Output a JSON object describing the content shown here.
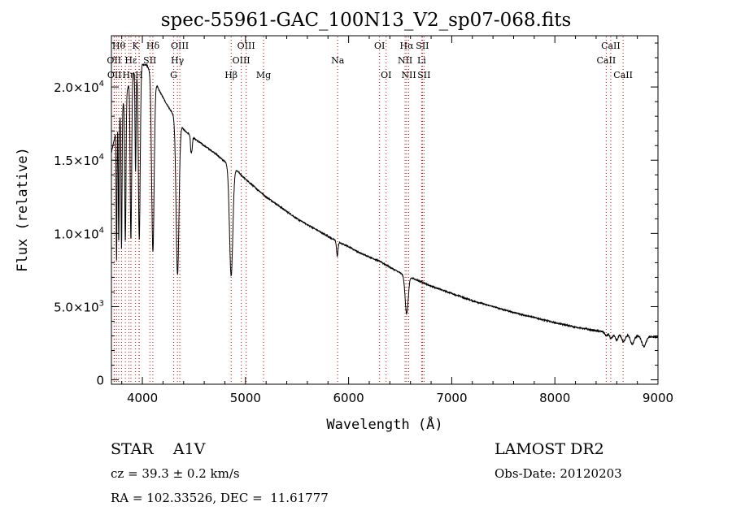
{
  "chart_data": {
    "type": "line",
    "title": "spec-55961-GAC_100N13_V2_sp07-068.fits",
    "xlabel": "Wavelength (Å)",
    "ylabel": "Flux (relative)",
    "xlim": [
      3700,
      9000
    ],
    "ylim": [
      -300,
      23500
    ],
    "grid": false,
    "x_ticks": [
      4000,
      5000,
      6000,
      7000,
      8000,
      9000
    ],
    "x_tick_labels": [
      "4000",
      "5000",
      "6000",
      "7000",
      "8000",
      "9000"
    ],
    "y_ticks": [
      0,
      5000,
      10000,
      15000,
      20000
    ],
    "y_tick_labels": [
      {
        "mant": "0",
        "exp": ""
      },
      {
        "mant": "5.0×10",
        "exp": "3"
      },
      {
        "mant": "1.0×10",
        "exp": "4"
      },
      {
        "mant": "1.5×10",
        "exp": "4"
      },
      {
        "mant": "2.0×10",
        "exp": "4"
      }
    ],
    "series": [
      {
        "continuum": [
          [
            3700,
            15500
          ],
          [
            3760,
            17500
          ],
          [
            3830,
            19300
          ],
          [
            3900,
            20800
          ],
          [
            3970,
            21600
          ],
          [
            4040,
            21500
          ],
          [
            4100,
            20800
          ],
          [
            4160,
            19800
          ],
          [
            4230,
            18900
          ],
          [
            4300,
            18100
          ],
          [
            4400,
            17100
          ],
          [
            4500,
            16500
          ],
          [
            4600,
            16000
          ],
          [
            4700,
            15500
          ],
          [
            4800,
            14900
          ],
          [
            4900,
            14400
          ],
          [
            5000,
            13700
          ],
          [
            5100,
            13100
          ],
          [
            5200,
            12500
          ],
          [
            5300,
            12000
          ],
          [
            5400,
            11500
          ],
          [
            5500,
            11000
          ],
          [
            5600,
            10600
          ],
          [
            5700,
            10200
          ],
          [
            5800,
            9800
          ],
          [
            5900,
            9400
          ],
          [
            6000,
            9100
          ],
          [
            6100,
            8700
          ],
          [
            6200,
            8400
          ],
          [
            6300,
            8100
          ],
          [
            6400,
            7700
          ],
          [
            6500,
            7300
          ],
          [
            6600,
            7000
          ],
          [
            6700,
            6700
          ],
          [
            6800,
            6400
          ],
          [
            7000,
            5900
          ],
          [
            7200,
            5400
          ],
          [
            7400,
            5000
          ],
          [
            7600,
            4600
          ],
          [
            7800,
            4250
          ],
          [
            8000,
            3900
          ],
          [
            8200,
            3600
          ],
          [
            8400,
            3350
          ],
          [
            8600,
            3150
          ],
          [
            8800,
            3000
          ],
          [
            9000,
            2900
          ]
        ],
        "absorption_lines": [
          {
            "center": 3750,
            "depth": 9000,
            "width": 4
          },
          {
            "center": 3771,
            "depth": 8500,
            "width": 4
          },
          {
            "center": 3798,
            "depth": 9500,
            "width": 5
          },
          {
            "center": 3835,
            "depth": 10000,
            "width": 6
          },
          {
            "center": 3889,
            "depth": 11000,
            "width": 7
          },
          {
            "center": 3934,
            "depth": 7000,
            "width": 5
          },
          {
            "center": 3970,
            "depth": 12000,
            "width": 9
          },
          {
            "center": 4102,
            "depth": 12000,
            "width": 12
          },
          {
            "center": 4341,
            "depth": 10500,
            "width": 14
          },
          {
            "center": 4471,
            "depth": 1000,
            "width": 5
          },
          {
            "center": 4481,
            "depth": 800,
            "width": 5
          },
          {
            "center": 4861,
            "depth": 7500,
            "width": 16
          },
          {
            "center": 5890,
            "depth": 1000,
            "width": 7
          },
          {
            "center": 6563,
            "depth": 2600,
            "width": 15
          },
          {
            "center": 8498,
            "depth": 250,
            "width": 12
          },
          {
            "center": 8545,
            "depth": 400,
            "width": 14
          },
          {
            "center": 8598,
            "depth": 450,
            "width": 15
          },
          {
            "center": 8665,
            "depth": 500,
            "width": 16
          },
          {
            "center": 8750,
            "depth": 600,
            "width": 18
          },
          {
            "center": 8863,
            "depth": 700,
            "width": 20
          }
        ],
        "color": "#000000"
      }
    ],
    "line_markers": [
      {
        "wavelength": 3726,
        "label": "OII",
        "row": 1
      },
      {
        "wavelength": 3729,
        "label": "OII",
        "row": 2
      },
      {
        "wavelength": 3750,
        "label": "",
        "row": 0
      },
      {
        "wavelength": 3771,
        "label": "Hθ",
        "row": 0
      },
      {
        "wavelength": 3798,
        "label": "",
        "row": 0
      },
      {
        "wavelength": 3835,
        "label": "",
        "row": 0
      },
      {
        "wavelength": 3869,
        "label": "Hη",
        "row": 2
      },
      {
        "wavelength": 3889,
        "label": "Hε",
        "row": 1
      },
      {
        "wavelength": 3934,
        "label": "K",
        "row": 0
      },
      {
        "wavelength": 3968,
        "label": "H",
        "row": 2
      },
      {
        "wavelength": 3970,
        "label": "",
        "row": 0
      },
      {
        "wavelength": 4073,
        "label": "SII",
        "row": 1
      },
      {
        "wavelength": 4102,
        "label": "Hδ",
        "row": 0
      },
      {
        "wavelength": 4304,
        "label": "G",
        "row": 2
      },
      {
        "wavelength": 4340,
        "label": "Hγ",
        "row": 1
      },
      {
        "wavelength": 4363,
        "label": "OIII",
        "row": 0
      },
      {
        "wavelength": 4861,
        "label": "Hβ",
        "row": 2
      },
      {
        "wavelength": 4959,
        "label": "OIII",
        "row": 1
      },
      {
        "wavelength": 5007,
        "label": "OIII",
        "row": 0
      },
      {
        "wavelength": 5175,
        "label": "Mg",
        "row": 2
      },
      {
        "wavelength": 5894,
        "label": "Na",
        "row": 1
      },
      {
        "wavelength": 6300,
        "label": "OI",
        "row": 0
      },
      {
        "wavelength": 6364,
        "label": "OI",
        "row": 2
      },
      {
        "wavelength": 6548,
        "label": "NII",
        "row": 1
      },
      {
        "wavelength": 6563,
        "label": "Hα",
        "row": 0
      },
      {
        "wavelength": 6583,
        "label": "NII",
        "row": 2
      },
      {
        "wavelength": 6708,
        "label": "Li",
        "row": 1
      },
      {
        "wavelength": 6716,
        "label": "SII",
        "row": 0
      },
      {
        "wavelength": 6731,
        "label": "SII",
        "row": 2
      },
      {
        "wavelength": 8498,
        "label": "CaII",
        "row": 1
      },
      {
        "wavelength": 8542,
        "label": "CaII",
        "row": 0
      },
      {
        "wavelength": 8662,
        "label": "CaII",
        "row": 2
      }
    ],
    "colors": {
      "spectrum": "#000000",
      "line_markers": "#cc0000",
      "axes": "#000000"
    }
  },
  "info": {
    "class": "STAR    A1V",
    "cz": "cz = 39.3 ± 0.2 km/s",
    "radec": "RA = 102.33526, DEC =  11.61777",
    "survey": "LAMOST DR2",
    "obsdate": "Obs-Date: 20120203"
  }
}
